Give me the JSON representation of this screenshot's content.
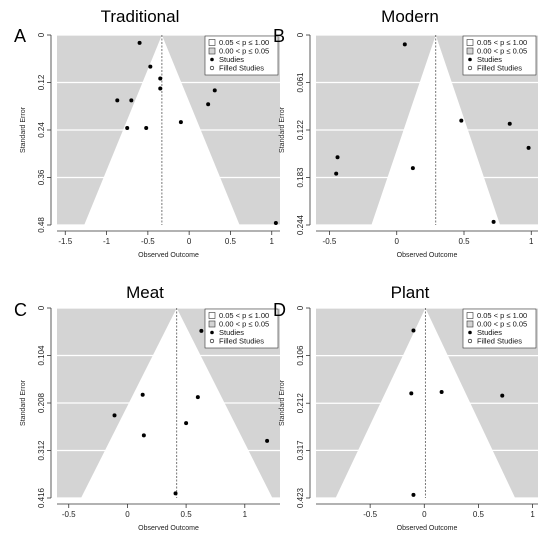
{
  "legend": [
    {
      "label": "0.05 < p ≤ 1.00",
      "kind": "box-white"
    },
    {
      "label": "0.00 < p ≤ 0.05",
      "kind": "box-gray"
    },
    {
      "label": "Studies",
      "kind": "dot-filled"
    },
    {
      "label": "Filled Studies",
      "kind": "dot-open"
    }
  ],
  "colors": {
    "significant_region": "#d4d4d4",
    "funnel": "#ffffff",
    "gridline": "#ffffff",
    "points": "#000000",
    "axis": "#333333"
  },
  "chart_data": [
    {
      "panel_label": "A",
      "title": "Traditional",
      "type": "scatter",
      "xlabel": "Observed Outcome",
      "ylabel": "Standard Error",
      "xlim": [
        -1.6,
        1.1
      ],
      "ylim": [
        0,
        0.48
      ],
      "xticks": [
        -1.5,
        -1,
        -0.5,
        0,
        0.5,
        1
      ],
      "xtick_labels": [
        "-1.5",
        "-1",
        "-0.5",
        "0",
        "0.5",
        "1"
      ],
      "yticks": [
        0,
        0.12,
        0.24,
        0.36,
        0.48
      ],
      "ytick_labels": [
        "0",
        "0.12",
        "0.24",
        "0.36",
        "0.48"
      ],
      "center": -0.33,
      "points": [
        {
          "x": -0.6,
          "y": 0.02
        },
        {
          "x": -0.47,
          "y": 0.08
        },
        {
          "x": -0.35,
          "y": 0.11
        },
        {
          "x": -0.35,
          "y": 0.135
        },
        {
          "x": 0.31,
          "y": 0.14
        },
        {
          "x": 0.23,
          "y": 0.175
        },
        {
          "x": -0.87,
          "y": 0.165
        },
        {
          "x": -0.7,
          "y": 0.165
        },
        {
          "x": -0.75,
          "y": 0.235
        },
        {
          "x": -0.52,
          "y": 0.235
        },
        {
          "x": -0.1,
          "y": 0.22
        },
        {
          "x": 1.05,
          "y": 0.475
        }
      ]
    },
    {
      "panel_label": "B",
      "title": "Modern",
      "type": "scatter",
      "xlabel": "Observed Outcome",
      "ylabel": "Standard Error",
      "xlim": [
        -0.6,
        1.05
      ],
      "ylim": [
        0,
        0.244
      ],
      "xticks": [
        -0.5,
        0,
        0.5,
        1
      ],
      "xtick_labels": [
        "-0.5",
        "0",
        "0.5",
        "1"
      ],
      "yticks": [
        0,
        0.061,
        0.122,
        0.183,
        0.244
      ],
      "ytick_labels": [
        "0",
        "0.061",
        "0.122",
        "0.183",
        "0.244"
      ],
      "center": 0.29,
      "points": [
        {
          "x": 0.06,
          "y": 0.012
        },
        {
          "x": 0.48,
          "y": 0.11
        },
        {
          "x": 0.84,
          "y": 0.114
        },
        {
          "x": 0.98,
          "y": 0.145
        },
        {
          "x": -0.44,
          "y": 0.157
        },
        {
          "x": -0.45,
          "y": 0.178
        },
        {
          "x": 0.12,
          "y": 0.171
        },
        {
          "x": 0.72,
          "y": 0.24
        }
      ]
    },
    {
      "panel_label": "C",
      "title": "Meat",
      "type": "scatter",
      "xlabel": "Observed Outcome",
      "ylabel": "Standard Error",
      "xlim": [
        -0.6,
        1.3
      ],
      "ylim": [
        0,
        0.416
      ],
      "xticks": [
        -0.5,
        0,
        0.5,
        1
      ],
      "xtick_labels": [
        "-0.5",
        "0",
        "0.5",
        "1"
      ],
      "yticks": [
        0,
        0.104,
        0.208,
        0.312,
        0.416
      ],
      "ytick_labels": [
        "0",
        "0.104",
        "0.208",
        "0.312",
        "0.416"
      ],
      "center": 0.42,
      "points": [
        {
          "x": 0.63,
          "y": 0.05
        },
        {
          "x": 0.13,
          "y": 0.19
        },
        {
          "x": 0.6,
          "y": 0.195
        },
        {
          "x": -0.11,
          "y": 0.235
        },
        {
          "x": 0.5,
          "y": 0.252
        },
        {
          "x": 0.14,
          "y": 0.279
        },
        {
          "x": 1.19,
          "y": 0.291
        },
        {
          "x": 0.41,
          "y": 0.406
        }
      ]
    },
    {
      "panel_label": "D",
      "title": "Plant",
      "type": "scatter",
      "xlabel": "Observed Outcome",
      "ylabel": "Standard Error",
      "xlim": [
        -1.0,
        1.05
      ],
      "ylim": [
        0,
        0.423
      ],
      "xticks": [
        -0.5,
        0,
        0.5,
        1
      ],
      "xtick_labels": [
        "-0.5",
        "0",
        "0.5",
        "1"
      ],
      "yticks": [
        0,
        0.106,
        0.212,
        0.317,
        0.423
      ],
      "ytick_labels": [
        "0",
        "0.106",
        "0.212",
        "0.317",
        "0.423"
      ],
      "center": 0.01,
      "points": [
        {
          "x": -0.1,
          "y": 0.05
        },
        {
          "x": -0.12,
          "y": 0.19
        },
        {
          "x": 0.16,
          "y": 0.187
        },
        {
          "x": 0.72,
          "y": 0.195
        },
        {
          "x": -0.1,
          "y": 0.416
        }
      ]
    }
  ]
}
